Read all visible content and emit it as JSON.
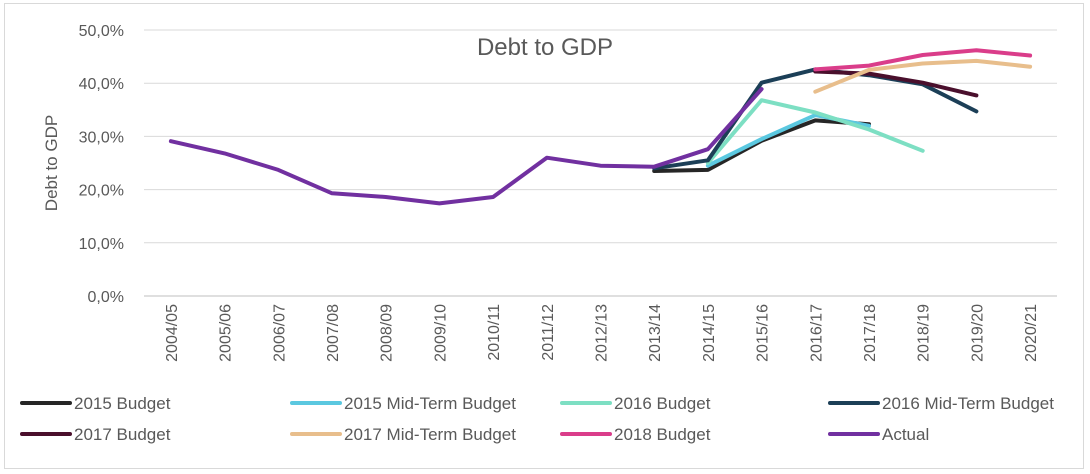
{
  "chart_data": {
    "type": "line",
    "title": "Debt to GDP",
    "ylabel": "Debt to GDP",
    "xlabel": "",
    "ylim": [
      0,
      50
    ],
    "ytick_labels": [
      "0,0%",
      "10,0%",
      "20,0%",
      "30,0%",
      "40,0%",
      "50,0%"
    ],
    "categories": [
      "2004/05",
      "2005/06",
      "2006/07",
      "2007/08",
      "2008/09",
      "2009/10",
      "2010/11",
      "2011/12",
      "2012/13",
      "2013/14",
      "2014/15",
      "2015/16",
      "2016/17",
      "2017/18",
      "2018/19",
      "2019/20",
      "2020/21"
    ],
    "grid": true,
    "legend_position": "bottom",
    "series": [
      {
        "name": "2015 Budget",
        "color": "#262626",
        "values": [
          null,
          null,
          null,
          null,
          null,
          null,
          null,
          null,
          null,
          23.5,
          23.7,
          29.2,
          33.0,
          32.3,
          null,
          null,
          null
        ]
      },
      {
        "name": "2015 Mid-Term Budget",
        "color": "#5bc8e0",
        "values": [
          null,
          null,
          null,
          null,
          null,
          null,
          null,
          null,
          null,
          null,
          24.5,
          29.5,
          34.0,
          32.0,
          null,
          null,
          null
        ]
      },
      {
        "name": "2016 Budget",
        "color": "#7ddfc3",
        "values": [
          null,
          null,
          null,
          null,
          null,
          null,
          null,
          null,
          null,
          null,
          25.0,
          36.8,
          34.5,
          31.3,
          27.3,
          null,
          null
        ]
      },
      {
        "name": "2016 Mid-Term Budget",
        "color": "#1c3f57",
        "values": [
          null,
          null,
          null,
          null,
          null,
          null,
          null,
          null,
          null,
          24.0,
          25.5,
          40.1,
          42.6,
          41.5,
          39.8,
          34.7,
          null
        ]
      },
      {
        "name": "2017 Budget",
        "color": "#4a0f2c",
        "values": [
          null,
          null,
          null,
          null,
          null,
          null,
          null,
          null,
          null,
          null,
          null,
          null,
          42.2,
          41.8,
          40.1,
          37.7,
          null
        ]
      },
      {
        "name": "2017 Mid-Term Budget",
        "color": "#e8be8c",
        "values": [
          null,
          null,
          null,
          null,
          null,
          null,
          null,
          null,
          null,
          null,
          null,
          null,
          38.4,
          42.5,
          43.7,
          44.2,
          43.1
        ]
      },
      {
        "name": "2018 Budget",
        "color": "#da3d8a",
        "values": [
          null,
          null,
          null,
          null,
          null,
          null,
          null,
          null,
          null,
          null,
          null,
          null,
          42.6,
          43.3,
          45.3,
          46.2,
          45.2
        ]
      },
      {
        "name": "Actual",
        "color": "#7130a0",
        "values": [
          29.1,
          26.8,
          23.7,
          19.3,
          18.6,
          17.4,
          18.6,
          26.0,
          24.5,
          24.3,
          27.6,
          38.9,
          null,
          null,
          null,
          null,
          null
        ]
      }
    ]
  }
}
